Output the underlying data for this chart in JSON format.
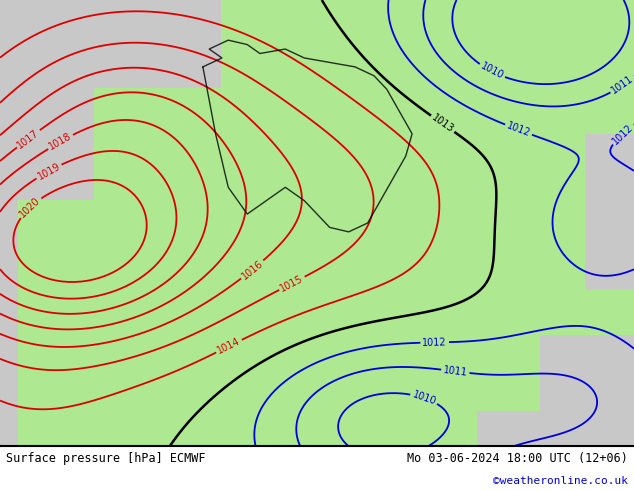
{
  "title_left": "Surface pressure [hPa] ECMWF",
  "title_right": "Mo 03-06-2024 18:00 UTC (12+06)",
  "credit": "©weatheronline.co.uk",
  "sea_color": "#c8c8c8",
  "land_color": "#aee890",
  "figsize": [
    6.34,
    4.9
  ],
  "dpi": 100,
  "bottom_bg": "#ffffff",
  "red_color": "#dd0000",
  "blue_color": "#0000dd",
  "black_color": "#000000"
}
